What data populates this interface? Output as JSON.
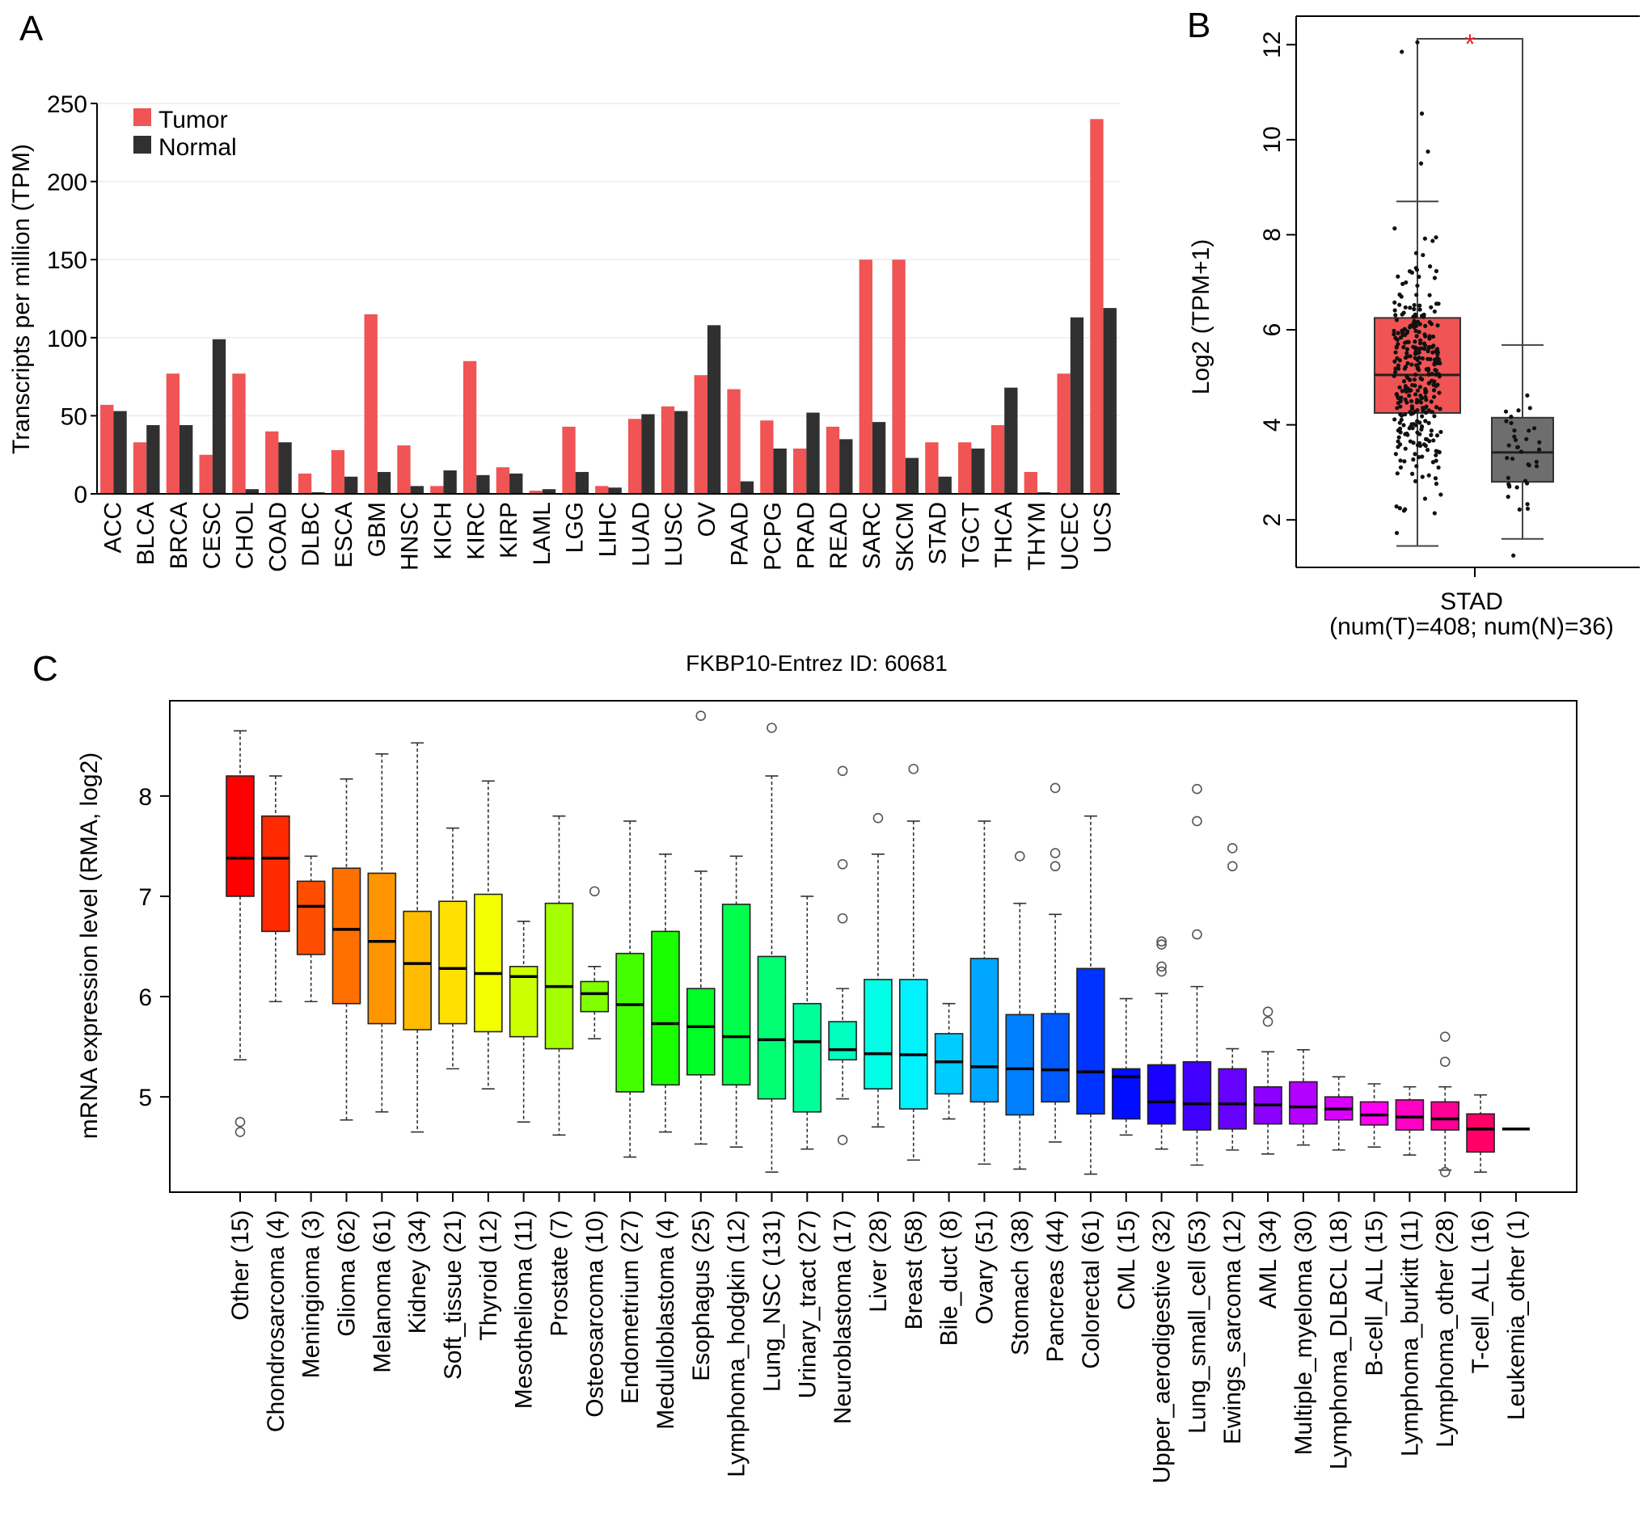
{
  "panels": {
    "A": "A",
    "B": "B",
    "C": "C"
  },
  "chart_data": [
    {
      "panel": "A",
      "type": "bar",
      "title": "",
      "xlabel": "",
      "ylabel": "Transcripts per million (TPM)",
      "ylim": [
        0,
        250
      ],
      "yticks": [
        0,
        50,
        100,
        150,
        200,
        250
      ],
      "grid": true,
      "legend_position": "top-left",
      "categories": [
        "ACC",
        "BLCA",
        "BRCA",
        "CESC",
        "CHOL",
        "COAD",
        "DLBC",
        "ESCA",
        "GBM",
        "HNSC",
        "KICH",
        "KIRC",
        "KIRP",
        "LAML",
        "LGG",
        "LIHC",
        "LUAD",
        "LUSC",
        "OV",
        "PAAD",
        "PCPG",
        "PRAD",
        "READ",
        "SARC",
        "SKCM",
        "STAD",
        "TGCT",
        "THCA",
        "THYM",
        "UCEC",
        "UCS"
      ],
      "series": [
        {
          "name": "Tumor",
          "color": "#f05454",
          "values": [
            57,
            33,
            77,
            25,
            77,
            40,
            13,
            28,
            115,
            31,
            5,
            85,
            17,
            2,
            43,
            5,
            48,
            56,
            76,
            67,
            47,
            29,
            43,
            150,
            150,
            33,
            33,
            44,
            14,
            77,
            240
          ]
        },
        {
          "name": "Normal",
          "color": "#303030",
          "values": [
            53,
            44,
            44,
            99,
            3,
            33,
            1,
            11,
            14,
            5,
            15,
            12,
            13,
            3,
            14,
            4,
            51,
            53,
            108,
            8,
            29,
            52,
            35,
            46,
            23,
            11,
            29,
            68,
            1,
            113,
            119
          ]
        }
      ]
    },
    {
      "panel": "B",
      "type": "box",
      "title": "",
      "xlabel": "STAD",
      "xlabel_sub": "(num(T)=408; num(N)=36)",
      "ylabel": "Log2 (TPM+1)",
      "ylim": [
        1,
        12.6
      ],
      "yticks": [
        2,
        4,
        6,
        8,
        10,
        12
      ],
      "significance": "*",
      "groups": [
        {
          "name": "Tumor",
          "color": "#f05454",
          "n": 408,
          "min": 1.45,
          "q1": 4.25,
          "median": 5.05,
          "q3": 6.25,
          "max": 8.7,
          "outliers": [
            9.5,
            9.75,
            10.55,
            11.85,
            12.05
          ]
        },
        {
          "name": "Normal",
          "color": "#6e6e6e",
          "n": 36,
          "min": 1.6,
          "q1": 2.8,
          "median": 3.42,
          "q3": 4.15,
          "max": 5.68,
          "outliers": [
            1.25
          ]
        }
      ]
    },
    {
      "panel": "C",
      "type": "box",
      "title": "FKBP10-Entrez ID: 60681",
      "xlabel": "",
      "ylabel": "mRNA expression level (RMA, log2)",
      "ylim": [
        4.05,
        8.95
      ],
      "yticks": [
        5,
        6,
        7,
        8
      ],
      "grid": false,
      "boxes": [
        {
          "label": "Other (15)",
          "color": "#ff0000",
          "min": 5.37,
          "q1": 7.0,
          "median": 7.38,
          "q3": 8.2,
          "max": 8.65,
          "outliers": [
            4.65,
            4.75
          ]
        },
        {
          "label": "Chondrosarcoma (4)",
          "color": "#ff2a00",
          "min": 5.95,
          "q1": 6.65,
          "median": 7.38,
          "q3": 7.8,
          "max": 8.2,
          "outliers": []
        },
        {
          "label": "Meningioma (3)",
          "color": "#ff4d00",
          "min": 5.95,
          "q1": 6.42,
          "median": 6.9,
          "q3": 7.15,
          "max": 7.4,
          "outliers": []
        },
        {
          "label": "Glioma (62)",
          "color": "#ff7000",
          "min": 4.77,
          "q1": 5.93,
          "median": 6.67,
          "q3": 7.28,
          "max": 8.17,
          "outliers": []
        },
        {
          "label": "Melanoma (61)",
          "color": "#ff9500",
          "min": 4.85,
          "q1": 5.73,
          "median": 6.55,
          "q3": 7.23,
          "max": 8.42,
          "outliers": []
        },
        {
          "label": "Kidney (34)",
          "color": "#ffbb00",
          "min": 4.65,
          "q1": 5.67,
          "median": 6.33,
          "q3": 6.85,
          "max": 8.53,
          "outliers": []
        },
        {
          "label": "Soft_tissue (21)",
          "color": "#ffe000",
          "min": 5.28,
          "q1": 5.73,
          "median": 6.28,
          "q3": 6.95,
          "max": 7.68,
          "outliers": []
        },
        {
          "label": "Thyroid (12)",
          "color": "#f2ff00",
          "min": 5.08,
          "q1": 5.65,
          "median": 6.23,
          "q3": 7.02,
          "max": 8.15,
          "outliers": []
        },
        {
          "label": "Mesothelioma (11)",
          "color": "#ccff00",
          "min": 4.75,
          "q1": 5.6,
          "median": 6.2,
          "q3": 6.3,
          "max": 6.75,
          "outliers": []
        },
        {
          "label": "Prostate (7)",
          "color": "#a6ff00",
          "min": 4.62,
          "q1": 5.48,
          "median": 6.1,
          "q3": 6.93,
          "max": 7.8,
          "outliers": []
        },
        {
          "label": "Osteosarcoma (10)",
          "color": "#80ff00",
          "min": 5.58,
          "q1": 5.85,
          "median": 6.03,
          "q3": 6.15,
          "max": 6.3,
          "outliers": [
            7.05
          ]
        },
        {
          "label": "Endometrium (27)",
          "color": "#44ff00",
          "min": 4.4,
          "q1": 5.05,
          "median": 5.92,
          "q3": 6.43,
          "max": 7.75,
          "outliers": []
        },
        {
          "label": "Medulloblastoma (4)",
          "color": "#1aff00",
          "min": 4.65,
          "q1": 5.12,
          "median": 5.73,
          "q3": 6.65,
          "max": 7.42,
          "outliers": []
        },
        {
          "label": "Esophagus (25)",
          "color": "#00ff26",
          "min": 4.53,
          "q1": 5.22,
          "median": 5.7,
          "q3": 6.08,
          "max": 7.25,
          "outliers": [
            8.8
          ]
        },
        {
          "label": "Lymphoma_hodgkin (12)",
          "color": "#00ff4d",
          "min": 4.5,
          "q1": 5.12,
          "median": 5.6,
          "q3": 6.92,
          "max": 7.4,
          "outliers": []
        },
        {
          "label": "Lung_NSC (131)",
          "color": "#00ff73",
          "min": 4.25,
          "q1": 4.98,
          "median": 5.57,
          "q3": 6.4,
          "max": 8.2,
          "outliers": [
            8.68
          ]
        },
        {
          "label": "Urinary_tract (27)",
          "color": "#00ff99",
          "min": 4.48,
          "q1": 4.85,
          "median": 5.55,
          "q3": 5.93,
          "max": 7.0,
          "outliers": []
        },
        {
          "label": "Neuroblastoma (17)",
          "color": "#00ffbf",
          "min": 4.98,
          "q1": 5.37,
          "median": 5.47,
          "q3": 5.75,
          "max": 6.08,
          "outliers": [
            4.57,
            6.78,
            7.32,
            8.25
          ]
        },
        {
          "label": "Liver (28)",
          "color": "#00ffe6",
          "min": 4.7,
          "q1": 5.08,
          "median": 5.43,
          "q3": 6.17,
          "max": 7.42,
          "outliers": [
            7.78
          ]
        },
        {
          "label": "Breast (58)",
          "color": "#00f2ff",
          "min": 4.37,
          "q1": 4.88,
          "median": 5.42,
          "q3": 6.17,
          "max": 7.75,
          "outliers": [
            8.27
          ]
        },
        {
          "label": "Bile_duct (8)",
          "color": "#00ccff",
          "min": 4.78,
          "q1": 5.03,
          "median": 5.35,
          "q3": 5.63,
          "max": 5.93,
          "outliers": []
        },
        {
          "label": "Ovary (51)",
          "color": "#00a6ff",
          "min": 4.33,
          "q1": 4.95,
          "median": 5.3,
          "q3": 6.38,
          "max": 7.75,
          "outliers": []
        },
        {
          "label": "Stomach (38)",
          "color": "#0080ff",
          "min": 4.28,
          "q1": 4.82,
          "median": 5.28,
          "q3": 5.82,
          "max": 6.93,
          "outliers": [
            7.4
          ]
        },
        {
          "label": "Pancreas (44)",
          "color": "#0059ff",
          "min": 4.55,
          "q1": 4.95,
          "median": 5.27,
          "q3": 5.83,
          "max": 6.82,
          "outliers": [
            7.3,
            7.43,
            8.08
          ]
        },
        {
          "label": "Colorectal (61)",
          "color": "#0033ff",
          "min": 4.23,
          "q1": 4.83,
          "median": 5.25,
          "q3": 6.28,
          "max": 7.8,
          "outliers": []
        },
        {
          "label": "CML (15)",
          "color": "#000dff",
          "min": 4.62,
          "q1": 4.78,
          "median": 5.2,
          "q3": 5.28,
          "max": 5.98,
          "outliers": []
        },
        {
          "label": "Upper_aerodigestive (32)",
          "color": "#1a00ff",
          "min": 4.48,
          "q1": 4.73,
          "median": 4.95,
          "q3": 5.32,
          "max": 6.03,
          "outliers": [
            6.25,
            6.3,
            6.52,
            6.55
          ]
        },
        {
          "label": "Lung_small_cell (53)",
          "color": "#4000ff",
          "min": 4.32,
          "q1": 4.67,
          "median": 4.93,
          "q3": 5.35,
          "max": 6.1,
          "outliers": [
            6.62,
            7.75,
            8.07
          ]
        },
        {
          "label": "Ewings_sarcoma (12)",
          "color": "#6600ff",
          "min": 4.47,
          "q1": 4.68,
          "median": 4.93,
          "q3": 5.28,
          "max": 5.48,
          "outliers": [
            7.3,
            7.48
          ]
        },
        {
          "label": "AML (34)",
          "color": "#8c00ff",
          "min": 4.43,
          "q1": 4.73,
          "median": 4.92,
          "q3": 5.1,
          "max": 5.45,
          "outliers": [
            5.75,
            5.85
          ]
        },
        {
          "label": "Multiple_myeloma (30)",
          "color": "#b300ff",
          "min": 4.52,
          "q1": 4.73,
          "median": 4.9,
          "q3": 5.15,
          "max": 5.47,
          "outliers": []
        },
        {
          "label": "Lymphoma_DLBCL (18)",
          "color": "#d900ff",
          "min": 4.47,
          "q1": 4.77,
          "median": 4.88,
          "q3": 5.0,
          "max": 5.2,
          "outliers": []
        },
        {
          "label": "B-cell_ALL (15)",
          "color": "#ff00f2",
          "min": 4.5,
          "q1": 4.72,
          "median": 4.82,
          "q3": 4.95,
          "max": 5.13,
          "outliers": []
        },
        {
          "label": "Lymphoma_burkitt (11)",
          "color": "#ff00c4",
          "min": 4.42,
          "q1": 4.67,
          "median": 4.8,
          "q3": 4.97,
          "max": 5.1,
          "outliers": []
        },
        {
          "label": "Lymphoma_other (28)",
          "color": "#ff0096",
          "min": 4.27,
          "q1": 4.67,
          "median": 4.78,
          "q3": 4.95,
          "max": 5.1,
          "outliers": [
            4.25,
            5.35,
            5.6
          ]
        },
        {
          "label": "T-cell_ALL (16)",
          "color": "#ff0066",
          "min": 4.25,
          "q1": 4.45,
          "median": 4.68,
          "q3": 4.83,
          "max": 5.02,
          "outliers": []
        },
        {
          "label": "Leukemia_other (1)",
          "color": "#ff0030",
          "min": 4.68,
          "q1": 4.68,
          "median": 4.68,
          "q3": 4.68,
          "max": 4.68,
          "outliers": []
        }
      ]
    }
  ]
}
